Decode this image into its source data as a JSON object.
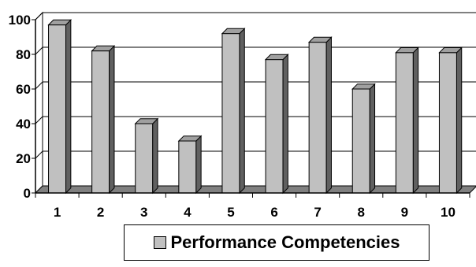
{
  "chart_data": {
    "type": "bar",
    "categories": [
      "1",
      "2",
      "3",
      "4",
      "5",
      "6",
      "7",
      "8",
      "9",
      "10"
    ],
    "series": [
      {
        "name": "Performance Competencies",
        "values": [
          97,
          82,
          40,
          30,
          92,
          77,
          87,
          60,
          81,
          81
        ],
        "color": "#c0c0c0"
      }
    ],
    "ylim": [
      0,
      100
    ],
    "yticks": [
      0,
      20,
      40,
      60,
      80,
      100
    ],
    "grid": true,
    "legend": "bottom",
    "style": "3d-column"
  }
}
